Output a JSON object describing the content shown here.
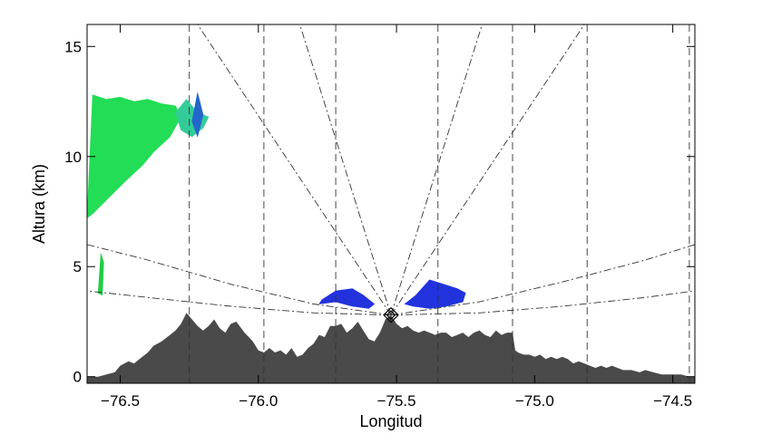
{
  "chart_data": {
    "type": "area",
    "title": "",
    "xlabel": "Longitud",
    "ylabel": "Altura (km)",
    "xlim": [
      -76.62,
      -74.42
    ],
    "ylim": [
      -0.3,
      16
    ],
    "xticks": [
      {
        "value": -76.5,
        "label": "−76.5"
      },
      {
        "value": -76.0,
        "label": "−76.0"
      },
      {
        "value": -75.5,
        "label": "−75.5"
      },
      {
        "value": -75.0,
        "label": "−75.0"
      },
      {
        "value": -74.5,
        "label": "−74.5"
      }
    ],
    "yticks": [
      {
        "value": 0,
        "label": "0"
      },
      {
        "value": 5,
        "label": "5"
      },
      {
        "value": 10,
        "label": "10"
      },
      {
        "value": 15,
        "label": "15"
      }
    ],
    "radar": {
      "lon": -75.52,
      "alt": 2.8
    },
    "vertical_dashed_lines": [
      -76.25,
      -75.98,
      -75.72,
      -75.35,
      -75.08,
      -74.81,
      -74.44
    ],
    "beam_lines_upper": [
      {
        "x": [
          -75.52,
          -75.85
        ],
        "y": [
          2.8,
          16
        ]
      },
      {
        "x": [
          -75.52,
          -76.22
        ],
        "y": [
          2.8,
          16
        ]
      },
      {
        "x": [
          -75.52,
          -75.19
        ],
        "y": [
          2.8,
          16
        ]
      },
      {
        "x": [
          -75.52,
          -74.82
        ],
        "y": [
          2.8,
          16
        ]
      }
    ],
    "beam_curves_left": [
      {
        "x": [
          -75.52,
          -75.8,
          -76.1,
          -76.4,
          -76.62
        ],
        "y": [
          2.8,
          3.3,
          4.2,
          5.3,
          6.0
        ]
      },
      {
        "x": [
          -75.52,
          -75.8,
          -76.1,
          -76.4,
          -76.62
        ],
        "y": [
          2.8,
          2.9,
          3.2,
          3.6,
          3.9
        ]
      }
    ],
    "beam_curves_right": [
      {
        "x": [
          -75.52,
          -75.2,
          -74.9,
          -74.6,
          -74.42
        ],
        "y": [
          2.8,
          3.4,
          4.3,
          5.3,
          6.0
        ]
      },
      {
        "x": [
          -75.52,
          -75.2,
          -74.9,
          -74.6,
          -74.42
        ],
        "y": [
          2.8,
          2.9,
          3.2,
          3.6,
          3.9
        ]
      }
    ],
    "terrain": {
      "color": "#4a4a4a",
      "x": [
        -76.62,
        -76.58,
        -76.55,
        -76.52,
        -76.5,
        -76.47,
        -76.45,
        -76.42,
        -76.4,
        -76.38,
        -76.35,
        -76.32,
        -76.3,
        -76.28,
        -76.26,
        -76.24,
        -76.22,
        -76.2,
        -76.18,
        -76.16,
        -76.14,
        -76.12,
        -76.1,
        -76.08,
        -76.05,
        -76.02,
        -76.0,
        -75.98,
        -75.96,
        -75.94,
        -75.92,
        -75.9,
        -75.88,
        -75.86,
        -75.84,
        -75.82,
        -75.8,
        -75.78,
        -75.76,
        -75.74,
        -75.72,
        -75.7,
        -75.68,
        -75.66,
        -75.64,
        -75.62,
        -75.6,
        -75.58,
        -75.56,
        -75.54,
        -75.52,
        -75.5,
        -75.48,
        -75.46,
        -75.44,
        -75.42,
        -75.4,
        -75.38,
        -75.36,
        -75.34,
        -75.32,
        -75.3,
        -75.28,
        -75.26,
        -75.24,
        -75.22,
        -75.2,
        -75.18,
        -75.16,
        -75.14,
        -75.12,
        -75.1,
        -75.08,
        -75.07,
        -75.06,
        -75.04,
        -75.02,
        -75.0,
        -74.98,
        -74.96,
        -74.94,
        -74.92,
        -74.9,
        -74.88,
        -74.86,
        -74.84,
        -74.82,
        -74.8,
        -74.78,
        -74.76,
        -74.74,
        -74.72,
        -74.7,
        -74.68,
        -74.65,
        -74.62,
        -74.6,
        -74.57,
        -74.54,
        -74.5,
        -74.47,
        -74.44,
        -74.42
      ],
      "y": [
        0.0,
        0.0,
        0.1,
        0.2,
        0.5,
        0.7,
        0.6,
        0.9,
        1.1,
        1.4,
        1.6,
        1.9,
        2.1,
        2.4,
        2.9,
        2.6,
        2.3,
        2.1,
        2.3,
        2.6,
        2.2,
        2.0,
        2.4,
        2.5,
        2.0,
        1.6,
        1.2,
        1.1,
        1.3,
        1.1,
        1.2,
        1.0,
        1.3,
        0.9,
        1.0,
        1.3,
        1.5,
        1.9,
        1.8,
        2.3,
        2.3,
        2.4,
        2.0,
        2.2,
        2.5,
        2.1,
        1.7,
        1.6,
        2.0,
        2.6,
        2.8,
        2.4,
        2.2,
        2.3,
        2.1,
        2.0,
        2.1,
        2.0,
        1.9,
        2.0,
        2.0,
        1.8,
        1.9,
        2.0,
        1.8,
        2.0,
        2.1,
        1.9,
        1.8,
        2.1,
        1.9,
        2.0,
        2.0,
        1.2,
        1.1,
        1.0,
        1.0,
        0.9,
        1.0,
        0.8,
        0.9,
        0.8,
        0.9,
        0.8,
        0.6,
        0.7,
        0.6,
        0.5,
        0.4,
        0.5,
        0.4,
        0.5,
        0.4,
        0.3,
        0.3,
        0.2,
        0.3,
        0.2,
        0.1,
        0.1,
        0.1,
        0.0,
        0.0
      ]
    },
    "echo_regions": [
      {
        "color": "#22dd55",
        "x": [
          -76.62,
          -76.6,
          -76.55,
          -76.5,
          -76.45,
          -76.4,
          -76.35,
          -76.3,
          -76.28,
          -76.32,
          -76.38,
          -76.42,
          -76.48,
          -76.52,
          -76.56,
          -76.6,
          -76.62
        ],
        "y": [
          7.2,
          12.8,
          12.6,
          12.7,
          12.5,
          12.6,
          12.4,
          12.3,
          11.8,
          10.9,
          10.2,
          9.6,
          8.9,
          8.4,
          7.9,
          7.4,
          7.2
        ]
      },
      {
        "color": "#33cc99",
        "x": [
          -76.3,
          -76.26,
          -76.22,
          -76.18,
          -76.2,
          -76.24,
          -76.28,
          -76.3
        ],
        "y": [
          12.0,
          12.6,
          12.0,
          11.8,
          11.3,
          10.9,
          11.2,
          12.0
        ]
      },
      {
        "color": "#2266cc",
        "x": [
          -76.24,
          -76.22,
          -76.2,
          -76.22,
          -76.24
        ],
        "y": [
          11.6,
          12.9,
          11.9,
          10.9,
          11.6
        ]
      },
      {
        "color": "#22cc44",
        "x": [
          -76.58,
          -76.57,
          -76.56,
          -76.565,
          -76.58
        ],
        "y": [
          3.8,
          5.6,
          5.2,
          3.7,
          3.8
        ]
      },
      {
        "color": "#2233dd",
        "x": [
          -75.77,
          -75.72,
          -75.66,
          -75.62,
          -75.58,
          -75.6,
          -75.66,
          -75.72,
          -75.78,
          -75.77
        ],
        "y": [
          3.5,
          3.9,
          4.0,
          3.7,
          3.3,
          3.1,
          3.2,
          3.4,
          3.3,
          3.5
        ]
      },
      {
        "color": "#2233dd",
        "x": [
          -75.47,
          -75.43,
          -75.38,
          -75.33,
          -75.28,
          -75.25,
          -75.26,
          -75.32,
          -75.38,
          -75.44,
          -75.47
        ],
        "y": [
          3.3,
          3.7,
          4.4,
          4.2,
          4.0,
          3.8,
          3.4,
          3.2,
          3.1,
          3.2,
          3.3
        ]
      }
    ]
  }
}
